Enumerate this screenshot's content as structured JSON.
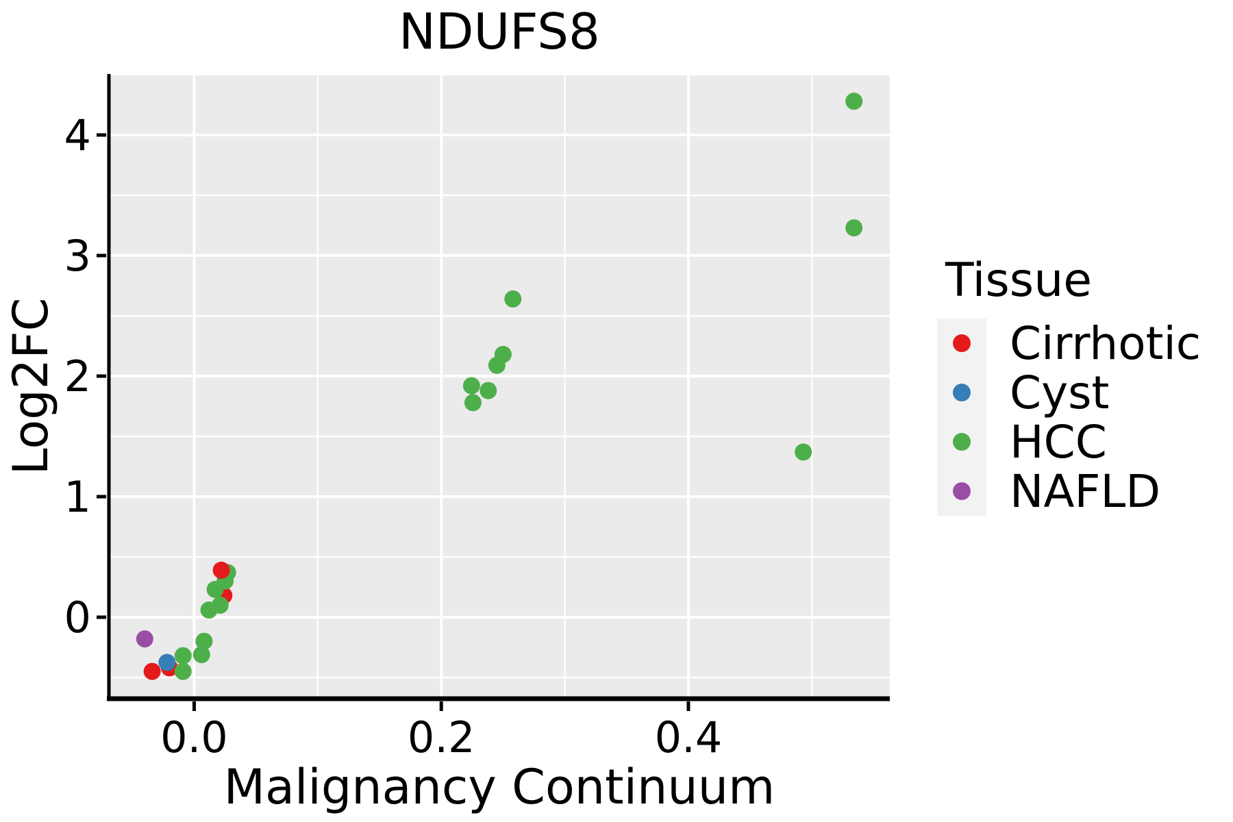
{
  "chart_data": {
    "type": "scatter",
    "title": "NDUFS8",
    "xlabel": "Malignancy Continuum",
    "ylabel": "Log2FC",
    "legend_title": "Tissue",
    "legend_position": "right",
    "grid": "major and minor white gridlines on gray panel",
    "panel_bg": "#EBEBEB",
    "legend_key_bg": "#F2F2F2",
    "xlim": [
      -0.069,
      0.563
    ],
    "ylim": [
      -0.676,
      4.506
    ],
    "x_ticks": {
      "values": [
        0.0,
        0.2,
        0.4
      ],
      "labels": [
        "0.0",
        "0.2",
        "0.4"
      ]
    },
    "y_ticks": {
      "values": [
        0,
        1,
        2,
        3,
        4
      ],
      "labels": [
        "0",
        "1",
        "2",
        "3",
        "4"
      ]
    },
    "x_minor": [
      0.1,
      0.3,
      0.5
    ],
    "y_minor": [
      -0.5,
      0.5,
      1.5,
      2.5,
      3.5,
      4.5
    ],
    "point_radius_px": 12.5,
    "series": [
      {
        "name": "Cirrhotic",
        "color": "#E41A1C",
        "points": [
          [
            0.022,
            0.39
          ],
          [
            0.024,
            0.18
          ],
          [
            -0.02,
            -0.42
          ],
          [
            -0.034,
            -0.45
          ]
        ]
      },
      {
        "name": "Cyst",
        "color": "#377EB8",
        "points": [
          [
            -0.022,
            -0.375
          ]
        ]
      },
      {
        "name": "HCC",
        "color": "#4DAF4A",
        "points": [
          [
            0.534,
            4.28
          ],
          [
            0.534,
            3.23
          ],
          [
            0.258,
            2.64
          ],
          [
            0.25,
            2.18
          ],
          [
            0.245,
            2.09
          ],
          [
            0.238,
            1.88
          ],
          [
            0.2245,
            1.92
          ],
          [
            0.2256,
            1.78
          ],
          [
            0.493,
            1.37
          ],
          [
            0.027,
            0.37
          ],
          [
            0.025,
            0.3
          ],
          [
            0.017,
            0.23
          ],
          [
            0.021,
            0.1
          ],
          [
            0.012,
            0.06
          ],
          [
            0.008,
            -0.2
          ],
          [
            0.006,
            -0.31
          ],
          [
            -0.009,
            -0.32
          ],
          [
            -0.009,
            -0.45
          ]
        ]
      },
      {
        "name": "NAFLD",
        "color": "#984EA3",
        "points": [
          [
            -0.04,
            -0.18
          ]
        ]
      }
    ],
    "draw_order": [
      [
        0,
        1
      ],
      [
        0,
        2
      ],
      [
        2,
        17
      ],
      [
        2,
        16
      ],
      [
        2,
        15
      ],
      [
        2,
        14
      ],
      [
        2,
        13
      ],
      [
        2,
        12
      ],
      [
        2,
        11
      ],
      [
        2,
        10
      ],
      [
        2,
        9
      ],
      [
        0,
        0
      ],
      [
        0,
        3
      ],
      [
        1,
        0
      ],
      [
        3,
        0
      ],
      [
        2,
        6
      ],
      [
        2,
        5
      ],
      [
        2,
        7
      ],
      [
        2,
        4
      ],
      [
        2,
        3
      ],
      [
        2,
        2
      ],
      [
        2,
        8
      ],
      [
        2,
        1
      ],
      [
        2,
        0
      ]
    ]
  }
}
